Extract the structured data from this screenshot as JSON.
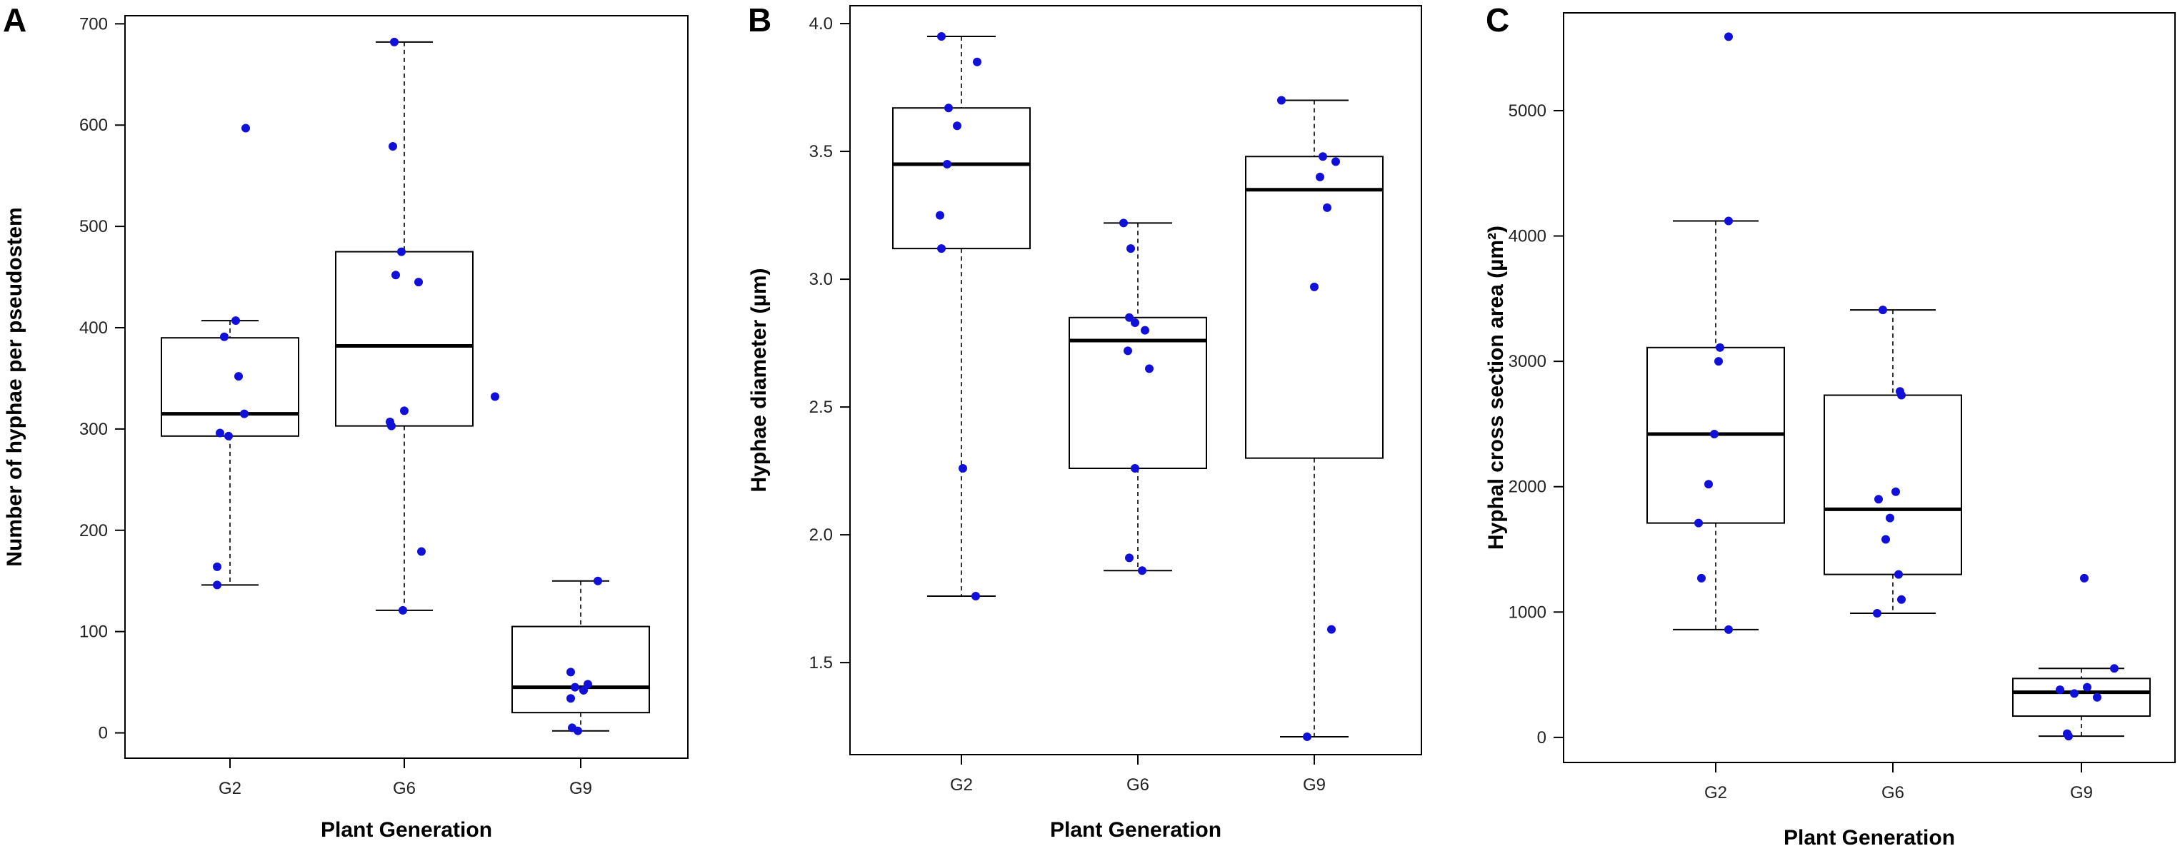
{
  "chart_data": [
    {
      "type": "box",
      "panel": "A",
      "categories": [
        "G2",
        "G6",
        "G9"
      ],
      "xlabel": "Plant Generation",
      "ylabel": "Number of hyphae per pseudostem",
      "yticks": [
        "0",
        "100",
        "200",
        "300",
        "400",
        "500",
        "600",
        "700"
      ],
      "ylim": [
        -25,
        708
      ],
      "boxes": [
        {
          "name": "G2",
          "min": 146,
          "q1": 293,
          "median": 315,
          "q3": 390,
          "max": 407
        },
        {
          "name": "G6",
          "min": 121,
          "q1": 303,
          "median": 382,
          "q3": 475,
          "max": 682
        },
        {
          "name": "G9",
          "min": 2,
          "q1": 20,
          "median": 45,
          "q3": 105,
          "max": 150
        }
      ],
      "points": [
        {
          "group": "G2",
          "values": [
            597,
            407,
            391,
            352,
            315,
            296,
            293,
            164,
            146
          ]
        },
        {
          "group": "G6",
          "values": [
            682,
            579,
            475,
            452,
            445,
            318,
            307,
            303,
            179,
            121
          ]
        },
        {
          "group": "G9",
          "values": [
            332,
            150,
            60,
            48,
            45,
            42,
            34,
            5,
            2
          ]
        }
      ]
    },
    {
      "type": "box",
      "panel": "B",
      "categories": [
        "G2",
        "G6",
        "G9"
      ],
      "xlabel": "Plant Generation",
      "ylabel": "Hyphae diameter (µm)",
      "yticks": [
        "1.5",
        "2.0",
        "2.5",
        "3.0",
        "3.5",
        "4.0"
      ],
      "ylim": [
        1.14,
        4.07
      ],
      "boxes": [
        {
          "name": "G2",
          "min": 1.76,
          "q1": 3.12,
          "median": 3.45,
          "q3": 3.67,
          "max": 3.95
        },
        {
          "name": "G6",
          "min": 1.86,
          "q1": 2.26,
          "median": 2.76,
          "q3": 2.85,
          "max": 3.22
        },
        {
          "name": "G9",
          "min": 1.21,
          "q1": 2.3,
          "median": 3.35,
          "q3": 3.48,
          "max": 3.7
        }
      ],
      "points": [
        {
          "group": "G2",
          "values": [
            3.95,
            3.85,
            3.67,
            3.6,
            3.45,
            3.25,
            3.12,
            2.26,
            1.76
          ]
        },
        {
          "group": "G6",
          "values": [
            3.22,
            3.12,
            2.85,
            2.83,
            2.8,
            2.72,
            2.65,
            2.26,
            1.91,
            1.86
          ]
        },
        {
          "group": "G9",
          "values": [
            3.7,
            3.48,
            3.46,
            3.4,
            3.28,
            2.97,
            1.63,
            1.21
          ]
        }
      ]
    },
    {
      "type": "box",
      "panel": "C",
      "categories": [
        "G2",
        "G6",
        "G9"
      ],
      "xlabel": "Plant Generation",
      "ylabel": "Hyphal cross section area (µm²)",
      "yticks": [
        "0",
        "1000",
        "2000",
        "3000",
        "4000",
        "5000"
      ],
      "ylim": [
        -200,
        5780
      ],
      "boxes": [
        {
          "name": "G2",
          "min": 860,
          "q1": 1710,
          "median": 2420,
          "q3": 3110,
          "max": 4120
        },
        {
          "name": "G6",
          "min": 990,
          "q1": 1300,
          "median": 1820,
          "q3": 2730,
          "max": 3410
        },
        {
          "name": "G9",
          "min": 10,
          "q1": 170,
          "median": 360,
          "q3": 470,
          "max": 550
        }
      ],
      "points": [
        {
          "group": "G2",
          "values": [
            5590,
            4120,
            3110,
            3000,
            2420,
            2020,
            1710,
            1270,
            860
          ]
        },
        {
          "group": "G6",
          "values": [
            3410,
            2760,
            2730,
            1960,
            1900,
            1750,
            1580,
            1300,
            1100,
            990
          ]
        },
        {
          "group": "G9",
          "values": [
            1270,
            550,
            400,
            380,
            350,
            320,
            30,
            10
          ]
        }
      ]
    }
  ]
}
